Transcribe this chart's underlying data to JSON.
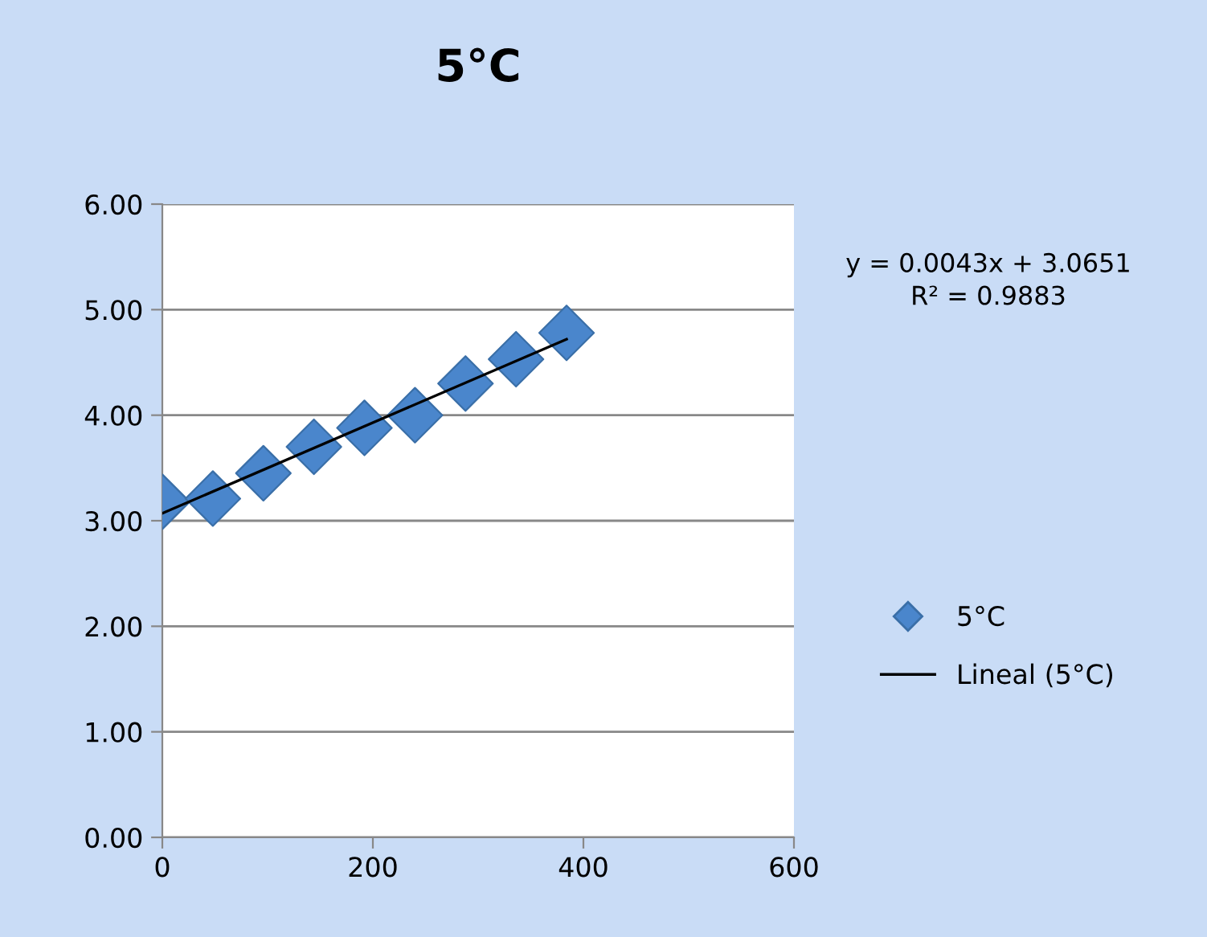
{
  "chart_data": {
    "type": "scatter",
    "title": "5°C",
    "series": [
      {
        "name": "5°C",
        "color": "#4a86cc",
        "marker": "diamond",
        "x": [
          0,
          48,
          96,
          144,
          192,
          240,
          288,
          336,
          384
        ],
        "values": [
          3.18,
          3.21,
          3.45,
          3.7,
          3.88,
          4.0,
          4.3,
          4.53,
          4.78
        ]
      },
      {
        "name": "Lineal (5°C)",
        "type": "line",
        "color": "#000000",
        "marker": "none",
        "line_style": "solid",
        "x": [
          0,
          384
        ],
        "values": [
          3.07,
          4.72
        ]
      }
    ],
    "annotations": [
      "y = 0.0043x + 3.0651\nR² = 0.9883"
    ],
    "xlim": [
      0,
      600
    ],
    "xticks": [
      0,
      200,
      400,
      600
    ],
    "ylim": [
      0,
      6
    ],
    "yticks": [
      {
        "value": 0,
        "label": "0.00"
      },
      {
        "value": 1,
        "label": "1.00"
      },
      {
        "value": 2,
        "label": "2.00"
      },
      {
        "value": 3,
        "label": "3.00"
      },
      {
        "value": 4,
        "label": "4.00"
      },
      {
        "value": 5,
        "label": "5.00"
      },
      {
        "value": 6,
        "label": "6.00"
      }
    ],
    "grid": "y",
    "legend": "right"
  }
}
